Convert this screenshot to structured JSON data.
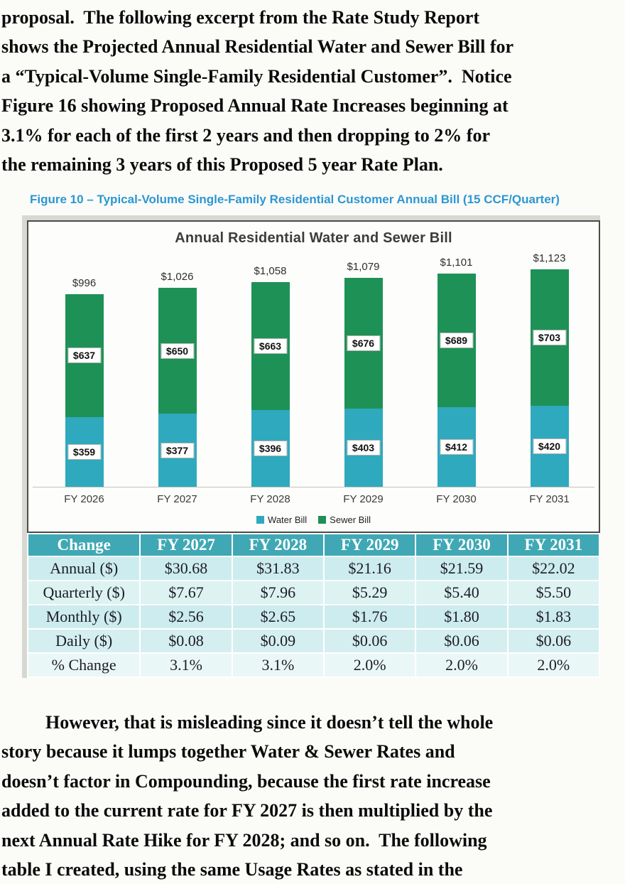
{
  "page": {
    "top_paragraph_lines": [
      "proposal.  The following excerpt from the Rate Study Report",
      "shows the Projected Annual Residential Water and Sewer Bill for",
      "a “Typical-Volume Single-Family Residential Customer”.  Notice",
      "Figure 16 showing Proposed Annual Rate Increases beginning at",
      "3.1% for each of the first 2 years and then dropping to 2% for",
      "the remaining 3 years of this Proposed 5 year Rate Plan."
    ],
    "figure_caption": "Figure 10 – Typical-Volume Single-Family Residential Customer Annual Bill (15 CCF/Quarter)",
    "bottom_paragraph_lines": [
      "However, that is misleading since it doesn’t tell the whole",
      "story because it lumps together Water & Sewer Rates and",
      "doesn’t factor in Compounding, because the first rate increase",
      "added to the current rate for FY 2027 is then multiplied by the",
      "next Annual Rate Hike for FY 2028; and so on.  The following",
      "table I created, using the same Usage Rates as stated in the"
    ]
  },
  "chart_data": {
    "type": "bar",
    "stacked": true,
    "title": "Annual Residential Water and Sewer Bill",
    "categories": [
      "FY 2026",
      "FY 2027",
      "FY 2028",
      "FY 2029",
      "FY 2030",
      "FY 2031"
    ],
    "series": [
      {
        "name": "Water Bill",
        "color": "#2fa9bd",
        "values": [
          359,
          377,
          396,
          403,
          412,
          420
        ],
        "labels": [
          "$359",
          "$377",
          "$396",
          "$403",
          "$412",
          "$420"
        ]
      },
      {
        "name": "Sewer Bill",
        "color": "#1e9157",
        "values": [
          637,
          650,
          663,
          676,
          689,
          703
        ],
        "labels": [
          "$637",
          "$650",
          "$663",
          "$676",
          "$689",
          "$703"
        ]
      }
    ],
    "totals": [
      996,
      1026,
      1058,
      1079,
      1101,
      1123
    ],
    "total_labels": [
      "$996",
      "$1,026",
      "$1,058",
      "$1,079",
      "$1,101",
      "$1,123"
    ],
    "legend_position": "bottom",
    "grid": false,
    "ylim": [
      0,
      1123
    ]
  },
  "table": {
    "header": [
      "Change",
      "FY 2027",
      "FY 2028",
      "FY 2029",
      "FY 2030",
      "FY 2031"
    ],
    "rows": [
      {
        "label": "Annual ($)",
        "values": [
          "$30.68",
          "$31.83",
          "$21.16",
          "$21.59",
          "$22.02"
        ]
      },
      {
        "label": "Quarterly ($)",
        "values": [
          "$7.67",
          "$7.96",
          "$5.29",
          "$5.40",
          "$5.50"
        ]
      },
      {
        "label": "Monthly ($)",
        "values": [
          "$2.56",
          "$2.65",
          "$1.76",
          "$1.80",
          "$1.83"
        ]
      },
      {
        "label": "Daily ($)",
        "values": [
          "$0.08",
          "$0.09",
          "$0.06",
          "$0.06",
          "$0.06"
        ]
      },
      {
        "label": "% Change",
        "values": [
          "3.1%",
          "3.1%",
          "2.0%",
          "2.0%",
          "2.0%"
        ]
      }
    ],
    "header_bg": "#3fa8b4",
    "row_bgs": [
      "#cdecef",
      "#dcf3f2",
      "#cdecef",
      "#d5eff1",
      "#eaf7f7"
    ]
  },
  "colors": {
    "caption_blue": "#2b97d3",
    "water_teal": "#2fa9bd",
    "sewer_green": "#1e9157",
    "table_header_teal": "#3fa8b4",
    "chart_border": "#4b4b4b"
  }
}
